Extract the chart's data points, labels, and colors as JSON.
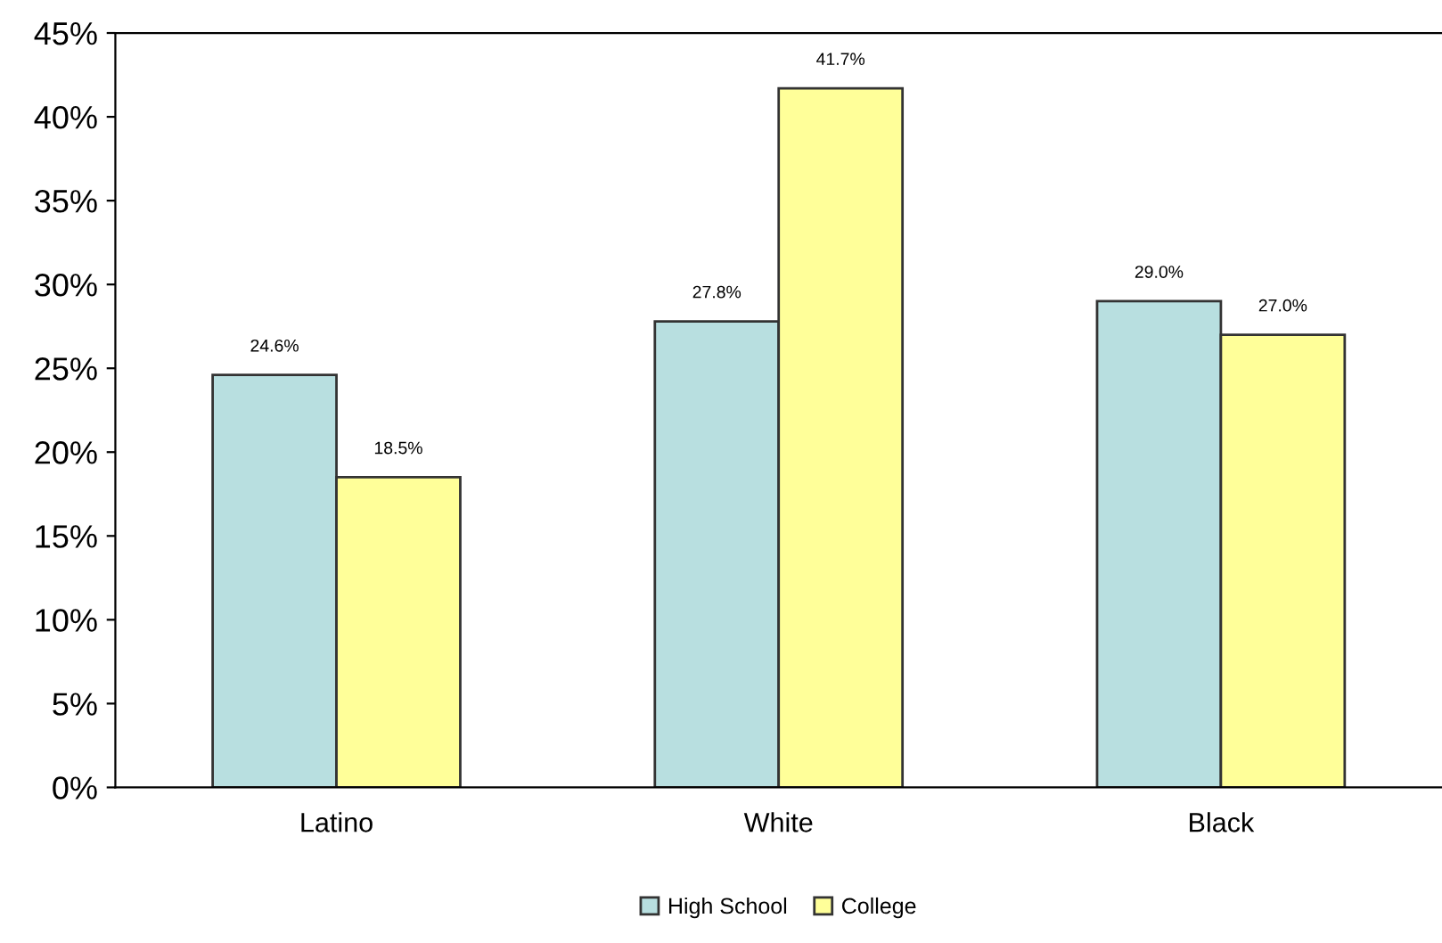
{
  "chart_data": {
    "type": "bar",
    "categories": [
      "Latino",
      "White",
      "Black"
    ],
    "series": [
      {
        "name": "High School",
        "color": "#b8dfe0",
        "values": [
          24.6,
          27.8,
          29.0
        ],
        "value_labels": [
          "24.6%",
          "27.8%",
          "29.0%"
        ]
      },
      {
        "name": "College",
        "color": "#ffff99",
        "values": [
          18.5,
          41.7,
          27.0
        ],
        "value_labels": [
          "18.5%",
          "41.7%",
          "27.0%"
        ]
      }
    ],
    "ylim": [
      0,
      45
    ],
    "yticks": [
      {
        "value": 0,
        "label": "0%"
      },
      {
        "value": 5,
        "label": "5%"
      },
      {
        "value": 10,
        "label": "10%"
      },
      {
        "value": 15,
        "label": "15%"
      },
      {
        "value": 20,
        "label": "20%"
      },
      {
        "value": 25,
        "label": "25%"
      },
      {
        "value": 30,
        "label": "30%"
      },
      {
        "value": 35,
        "label": "35%"
      },
      {
        "value": 40,
        "label": "40%"
      },
      {
        "value": 45,
        "label": "45%"
      }
    ],
    "grid": false,
    "legend": "bottom"
  }
}
